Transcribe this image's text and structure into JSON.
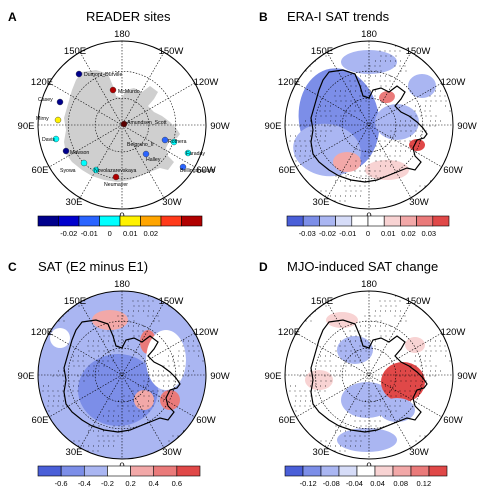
{
  "panels": [
    {
      "letter": "A",
      "title": "READER sites",
      "lon_labels": {
        "n": "180",
        "nw": "150E",
        "ne": "150W",
        "wnw": "120E",
        "ene": "120W",
        "w": "90E",
        "e": "90W",
        "wsw": "60E",
        "esw": "60W",
        "sw": "30E",
        "se": "30W",
        "s": "0"
      },
      "stations": [
        "Dumont_Durville",
        "McMurdo",
        "Casey",
        "Mirny",
        "Davis",
        "Amundsen_Scott",
        "Mawson",
        "Syowa",
        "Novolazarevskaya",
        "Neumayer",
        "Halley",
        "Belgrano_II",
        "Rothera",
        "Faraday",
        "Bellingshausen"
      ],
      "colorbar": {
        "ticks": [
          "-0.02",
          "-0.01",
          "0",
          "0.01",
          "0.02"
        ],
        "colors": [
          "#00008c",
          "#0000cd",
          "#2a64ff",
          "#00ffff",
          "#fff200",
          "#ffa500",
          "#ff3a1a",
          "#b00000"
        ]
      }
    },
    {
      "letter": "B",
      "title": "ERA-I SAT trends",
      "lon_labels": {
        "n": "180",
        "nw": "150E",
        "ne": "150W",
        "wnw": "120E",
        "ene": "120W",
        "w": "90E",
        "e": "90W",
        "wsw": "60E",
        "esw": "60W",
        "sw": "30E",
        "se": "30W",
        "s": "0"
      },
      "colorbar": {
        "ticks": [
          "-0.03",
          "-0.02",
          "-0.01",
          "0",
          "0.01",
          "0.02",
          "0.03"
        ],
        "colors": [
          "#4a5fd8",
          "#7c8ee8",
          "#aab6f2",
          "#d6dcf8",
          "#ffffff",
          "#ffffff",
          "#f8d3d3",
          "#f2a8a8",
          "#ea7a7a",
          "#e04848"
        ]
      }
    },
    {
      "letter": "C",
      "title": "SAT (E2 minus E1)",
      "lon_labels": {
        "n": "180",
        "nw": "150E",
        "ne": "150W",
        "wnw": "120E",
        "ene": "120W",
        "w": "90E",
        "e": "90W",
        "wsw": "60E",
        "esw": "60W",
        "sw": "30E",
        "se": "30W",
        "s": "0"
      },
      "colorbar": {
        "ticks": [
          "-0.6",
          "-0.4",
          "-0.2",
          "0.2",
          "0.4",
          "0.6"
        ],
        "colors": [
          "#4a5fd8",
          "#7c8ee8",
          "#aab6f2",
          "#ffffff",
          "#f2a8a8",
          "#ea7a7a",
          "#e04848"
        ]
      }
    },
    {
      "letter": "D",
      "title": "MJO-induced SAT change",
      "lon_labels": {
        "n": "180",
        "nw": "150E",
        "ne": "150W",
        "wnw": "120E",
        "ene": "120W",
        "w": "90E",
        "e": "90W",
        "wsw": "60E",
        "esw": "60W",
        "sw": "30E",
        "se": "30W",
        "s": "0"
      },
      "colorbar": {
        "ticks": [
          "-0.12",
          "-0.08",
          "-0.04",
          "0.04",
          "0.08",
          "0.12"
        ],
        "colors": [
          "#4a5fd8",
          "#7c8ee8",
          "#aab6f2",
          "#d6dcf8",
          "#ffffff",
          "#f8d3d3",
          "#f2a8a8",
          "#ea7a7a",
          "#e04848"
        ]
      }
    }
  ]
}
